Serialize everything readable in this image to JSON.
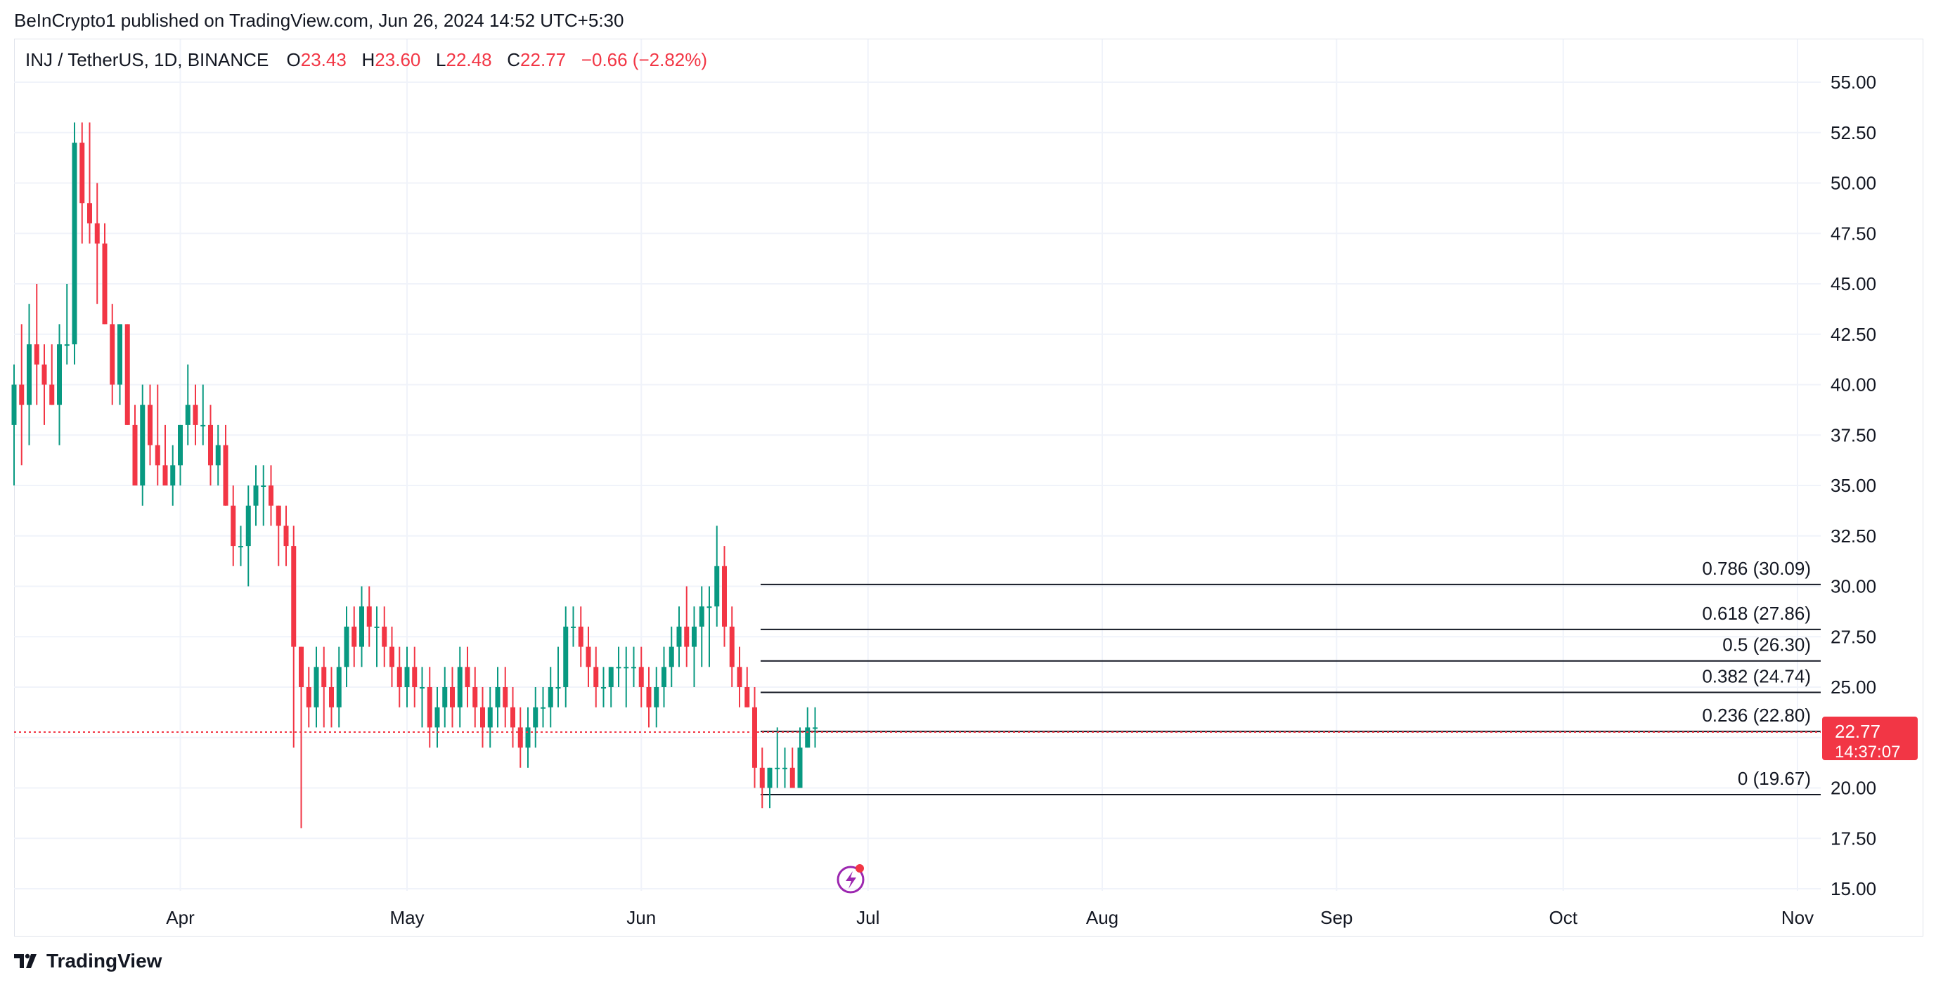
{
  "header": {
    "published": "BeInCrypto1 published on TradingView.com, Jun 26, 2024 14:52 UTC+5:30"
  },
  "legend": {
    "symbol": "INJ / TetherUS, 1D, BINANCE",
    "o_label": "O",
    "o_value": "23.43",
    "h_label": "H",
    "h_value": "23.60",
    "l_label": "L",
    "l_value": "22.48",
    "c_label": "C",
    "c_value": "22.77",
    "change": "−0.66 (−2.82%)"
  },
  "price_tag": {
    "price": "22.77",
    "countdown": "14:37:07",
    "color": "#f23645"
  },
  "footer": {
    "brand": "TradingView"
  },
  "colors": {
    "up": "#089981",
    "down": "#f23645",
    "grid": "#f0f3fa",
    "fib_line": "#131722",
    "accent_icon": "#9c27b0"
  },
  "chart_data": {
    "type": "candlestick",
    "title": "INJ / TetherUS, 1D, BINANCE",
    "xlabel": "",
    "ylabel": "",
    "ylim": [
      15,
      57
    ],
    "y_ticks": [
      "15.00",
      "17.50",
      "20.00",
      "22.50",
      "25.00",
      "27.50",
      "30.00",
      "32.50",
      "35.00",
      "37.50",
      "40.00",
      "42.50",
      "45.00",
      "47.50",
      "50.00",
      "52.50",
      "55.00"
    ],
    "x_ticks": [
      {
        "label": "Apr",
        "day": 22
      },
      {
        "label": "May",
        "day": 52
      },
      {
        "label": "Jun",
        "day": 83
      },
      {
        "label": "Jul",
        "day": 113
      },
      {
        "label": "Aug",
        "day": 144
      },
      {
        "label": "Sep",
        "day": 175
      },
      {
        "label": "Oct",
        "day": 205
      },
      {
        "label": "Nov",
        "day": 236
      }
    ],
    "candles": [
      [
        0,
        38,
        41,
        35,
        40
      ],
      [
        1,
        40,
        43,
        36,
        39
      ],
      [
        2,
        39,
        44,
        37,
        42
      ],
      [
        3,
        42,
        45,
        39,
        41
      ],
      [
        4,
        41,
        42,
        38,
        40
      ],
      [
        5,
        40,
        42,
        39,
        39
      ],
      [
        6,
        39,
        43,
        37,
        42
      ],
      [
        7,
        42,
        45,
        41,
        42
      ],
      [
        8,
        42,
        53,
        41,
        52
      ],
      [
        9,
        52,
        53,
        47,
        49
      ],
      [
        10,
        49,
        53,
        47,
        48
      ],
      [
        11,
        48,
        50,
        44,
        47
      ],
      [
        12,
        47,
        48,
        43,
        43
      ],
      [
        13,
        43,
        44,
        39,
        40
      ],
      [
        14,
        40,
        43,
        39,
        43
      ],
      [
        15,
        43,
        43,
        38,
        38
      ],
      [
        16,
        38,
        39,
        35,
        35
      ],
      [
        17,
        35,
        40,
        34,
        39
      ],
      [
        18,
        39,
        40,
        36,
        37
      ],
      [
        19,
        37,
        40,
        35,
        36
      ],
      [
        20,
        36,
        38,
        35,
        35
      ],
      [
        21,
        35,
        37,
        34,
        36
      ],
      [
        22,
        36,
        38,
        35,
        38
      ],
      [
        23,
        38,
        41,
        37,
        39
      ],
      [
        24,
        39,
        40,
        37,
        38
      ],
      [
        25,
        38,
        40,
        37,
        38
      ],
      [
        26,
        38,
        39,
        35,
        36
      ],
      [
        27,
        36,
        38,
        35,
        37
      ],
      [
        28,
        37,
        38,
        34,
        34
      ],
      [
        29,
        34,
        35,
        31,
        32
      ],
      [
        30,
        32,
        33,
        31,
        32
      ],
      [
        31,
        32,
        35,
        30,
        34
      ],
      [
        32,
        34,
        36,
        33,
        35
      ],
      [
        33,
        35,
        36,
        33,
        35
      ],
      [
        34,
        35,
        36,
        33,
        34
      ],
      [
        35,
        34,
        34,
        31,
        33
      ],
      [
        36,
        33,
        34,
        31,
        32
      ],
      [
        37,
        32,
        33,
        22,
        27
      ],
      [
        38,
        27,
        27,
        18,
        25
      ],
      [
        39,
        25,
        26,
        23,
        24
      ],
      [
        40,
        24,
        27,
        23,
        26
      ],
      [
        41,
        26,
        27,
        23,
        25
      ],
      [
        42,
        25,
        26,
        23,
        24
      ],
      [
        43,
        24,
        27,
        23,
        26
      ],
      [
        44,
        26,
        29,
        25,
        28
      ],
      [
        45,
        28,
        29,
        26,
        27
      ],
      [
        46,
        27,
        30,
        26,
        29
      ],
      [
        47,
        29,
        30,
        27,
        28
      ],
      [
        48,
        28,
        29,
        26,
        28
      ],
      [
        49,
        28,
        29,
        26,
        27
      ],
      [
        50,
        27,
        28,
        25,
        26
      ],
      [
        51,
        26,
        27,
        24,
        25
      ],
      [
        52,
        25,
        27,
        24,
        26
      ],
      [
        53,
        26,
        27,
        24,
        25
      ],
      [
        54,
        25,
        26,
        23,
        25
      ],
      [
        55,
        25,
        26,
        22,
        23
      ],
      [
        56,
        23,
        25,
        22,
        24
      ],
      [
        57,
        24,
        26,
        23,
        25
      ],
      [
        58,
        25,
        26,
        23,
        24
      ],
      [
        59,
        24,
        27,
        23,
        26
      ],
      [
        60,
        26,
        27,
        24,
        25
      ],
      [
        61,
        25,
        26,
        23,
        24
      ],
      [
        62,
        24,
        25,
        22,
        23
      ],
      [
        63,
        23,
        25,
        22,
        24
      ],
      [
        64,
        24,
        26,
        23,
        25
      ],
      [
        65,
        25,
        26,
        23,
        24
      ],
      [
        66,
        24,
        25,
        22,
        23
      ],
      [
        67,
        23,
        24,
        21,
        22
      ],
      [
        68,
        22,
        24,
        21,
        23
      ],
      [
        69,
        23,
        25,
        22,
        24
      ],
      [
        70,
        24,
        25,
        23,
        24
      ],
      [
        71,
        24,
        26,
        23,
        25
      ],
      [
        72,
        25,
        27,
        24,
        25
      ],
      [
        73,
        25,
        29,
        24,
        28
      ],
      [
        74,
        28,
        29,
        27,
        28
      ],
      [
        75,
        28,
        29,
        26,
        27
      ],
      [
        76,
        27,
        28,
        25,
        26
      ],
      [
        77,
        26,
        27,
        24,
        25
      ],
      [
        78,
        25,
        26,
        24,
        25
      ],
      [
        79,
        25,
        26,
        24,
        26
      ],
      [
        80,
        26,
        27,
        25,
        26
      ],
      [
        81,
        26,
        27,
        24,
        26
      ],
      [
        82,
        26,
        27,
        25,
        26
      ],
      [
        83,
        26,
        27,
        24,
        25
      ],
      [
        84,
        25,
        26,
        23,
        24
      ],
      [
        85,
        24,
        26,
        23,
        25
      ],
      [
        86,
        25,
        27,
        24,
        26
      ],
      [
        87,
        26,
        28,
        25,
        27
      ],
      [
        88,
        27,
        29,
        26,
        28
      ],
      [
        89,
        28,
        30,
        26,
        27
      ],
      [
        90,
        27,
        29,
        25,
        28
      ],
      [
        91,
        28,
        30,
        26,
        29
      ],
      [
        92,
        29,
        30,
        26,
        29
      ],
      [
        93,
        29,
        33,
        28,
        31
      ],
      [
        94,
        31,
        32,
        27,
        28
      ],
      [
        95,
        28,
        29,
        25,
        26
      ],
      [
        96,
        26,
        27,
        24,
        25
      ],
      [
        97,
        25,
        26,
        24,
        24
      ],
      [
        98,
        24,
        25,
        20,
        21
      ],
      [
        99,
        21,
        22,
        19,
        20
      ],
      [
        100,
        20,
        21,
        19,
        21
      ],
      [
        101,
        21,
        23,
        20,
        21
      ],
      [
        102,
        21,
        22,
        20,
        21
      ],
      [
        103,
        21,
        22,
        20,
        20
      ],
      [
        104,
        20,
        23,
        20,
        22
      ],
      [
        105,
        22,
        24,
        22,
        23
      ],
      [
        106,
        23,
        24,
        22,
        23
      ]
    ],
    "fib_levels": [
      {
        "label": "0.786 (30.09)",
        "price": 30.09
      },
      {
        "label": "0.618 (27.86)",
        "price": 27.86
      },
      {
        "label": "0.5 (26.30)",
        "price": 26.3
      },
      {
        "label": "0.382 (24.74)",
        "price": 24.74
      },
      {
        "label": "0.236 (22.80)",
        "price": 22.8
      },
      {
        "label": "0 (19.67)",
        "price": 19.67
      }
    ],
    "fib_start_day": 96,
    "last_price": 22.77,
    "grid": true
  }
}
